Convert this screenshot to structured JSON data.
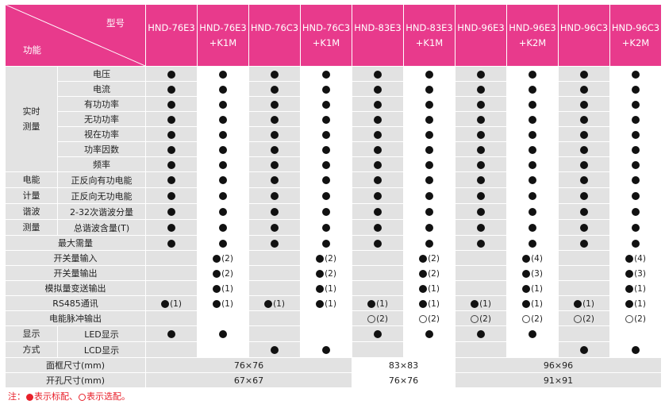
{
  "header": {
    "corner_model": "型号",
    "corner_function": "功能",
    "models": [
      {
        "line1": "HND-76E3",
        "line2": ""
      },
      {
        "line1": "HND-76E3",
        "line2": "+K1M"
      },
      {
        "line1": "HND-76C3",
        "line2": ""
      },
      {
        "line1": "HND-76C3",
        "line2": "+K1M"
      },
      {
        "line1": "HND-83E3",
        "line2": ""
      },
      {
        "line1": "HND-83E3",
        "line2": "+K1M"
      },
      {
        "line1": "HND-96E3",
        "line2": ""
      },
      {
        "line1": "HND-96E3",
        "line2": "+K2M"
      },
      {
        "line1": "HND-96C3",
        "line2": ""
      },
      {
        "line1": "HND-96C3",
        "line2": "+K2M"
      }
    ]
  },
  "groups": {
    "realtime": "实时\n测量",
    "energy_1": "电能",
    "energy_2": "计量",
    "harmonic_1": "谐波",
    "harmonic_2": "测量",
    "display_1": "显示",
    "display_2": "方式"
  },
  "rows": [
    {
      "label": "电压",
      "cells": [
        "D",
        "D",
        "D",
        "D",
        "D",
        "D",
        "D",
        "D",
        "D",
        "D"
      ]
    },
    {
      "label": "电流",
      "cells": [
        "D",
        "D",
        "D",
        "D",
        "D",
        "D",
        "D",
        "D",
        "D",
        "D"
      ]
    },
    {
      "label": "有功功率",
      "cells": [
        "D",
        "D",
        "D",
        "D",
        "D",
        "D",
        "D",
        "D",
        "D",
        "D"
      ]
    },
    {
      "label": "无功功率",
      "cells": [
        "D",
        "D",
        "D",
        "D",
        "D",
        "D",
        "D",
        "D",
        "D",
        "D"
      ]
    },
    {
      "label": "视在功率",
      "cells": [
        "D",
        "D",
        "D",
        "D",
        "D",
        "D",
        "D",
        "D",
        "D",
        "D"
      ]
    },
    {
      "label": "功率因数",
      "cells": [
        "D",
        "D",
        "D",
        "D",
        "D",
        "D",
        "D",
        "D",
        "D",
        "D"
      ]
    },
    {
      "label": "频率",
      "cells": [
        "D",
        "D",
        "D",
        "D",
        "D",
        "D",
        "D",
        "D",
        "D",
        "D"
      ]
    },
    {
      "label": "正反向有功电能",
      "cells": [
        "D",
        "D",
        "D",
        "D",
        "D",
        "D",
        "D",
        "D",
        "D",
        "D"
      ]
    },
    {
      "label": "正反向无功电能",
      "cells": [
        "D",
        "D",
        "D",
        "D",
        "D",
        "D",
        "D",
        "D",
        "D",
        "D"
      ]
    },
    {
      "label": "2-32次谐波分量",
      "cells": [
        "D",
        "D",
        "D",
        "D",
        "D",
        "D",
        "D",
        "D",
        "D",
        "D"
      ]
    },
    {
      "label": "总谐波含量(T)",
      "cells": [
        "D",
        "D",
        "D",
        "D",
        "D",
        "D",
        "D",
        "D",
        "D",
        "D"
      ]
    },
    {
      "label": "最大需量",
      "cells": [
        "D",
        "D",
        "D",
        "D",
        "D",
        "D",
        "D",
        "D",
        "D",
        "D"
      ]
    },
    {
      "label": "开关量输入",
      "cells": [
        "",
        "D:(2)",
        "",
        "D:(2)",
        "",
        "D:(2)",
        "",
        "D:(4)",
        "",
        "D:(4)"
      ]
    },
    {
      "label": "开关量输出",
      "cells": [
        "",
        "D:(2)",
        "",
        "D:(2)",
        "",
        "D:(2)",
        "",
        "D:(3)",
        "",
        "D:(3)"
      ]
    },
    {
      "label": "模拟量变送输出",
      "cells": [
        "",
        "D:(1)",
        "",
        "D:(1)",
        "",
        "D:(1)",
        "",
        "D:(1)",
        "",
        "D:(1)"
      ]
    },
    {
      "label": "RS485通讯",
      "cells": [
        "D:(1)",
        "D:(1)",
        "D:(1)",
        "D:(1)",
        "D:(1)",
        "D:(1)",
        "D:(1)",
        "D:(1)",
        "D:(1)",
        "D:(1)"
      ]
    },
    {
      "label": "电能脉冲输出",
      "cells": [
        "",
        "",
        "",
        "",
        "O:(2)",
        "O:(2)",
        "O:(2)",
        "O:(2)",
        "O:(2)",
        "O:(2)"
      ]
    },
    {
      "label": "LED显示",
      "cells": [
        "D",
        "D",
        "",
        "",
        "D",
        "D",
        "D",
        "D",
        "",
        ""
      ]
    },
    {
      "label": "LCD显示",
      "cells": [
        "",
        "",
        "D",
        "D",
        "",
        "",
        "",
        "",
        "D",
        "D"
      ]
    }
  ],
  "dimensions": {
    "frame_label": "面框尺寸(mm)",
    "hole_label": "开孔尺寸(mm)",
    "frame_76": "76×76",
    "frame_83": "83×83",
    "frame_96": "96×96",
    "hole_76": "67×67",
    "hole_83": "76×76",
    "hole_96": "91×91"
  },
  "footnote": {
    "prefix": "注：",
    "standard": "表示标配、",
    "optional": "表示选配。"
  },
  "colors": {
    "header_pink": "#e83a8c",
    "footnote_red": "#e8202a",
    "shade_gray": "#e2e2e2"
  }
}
